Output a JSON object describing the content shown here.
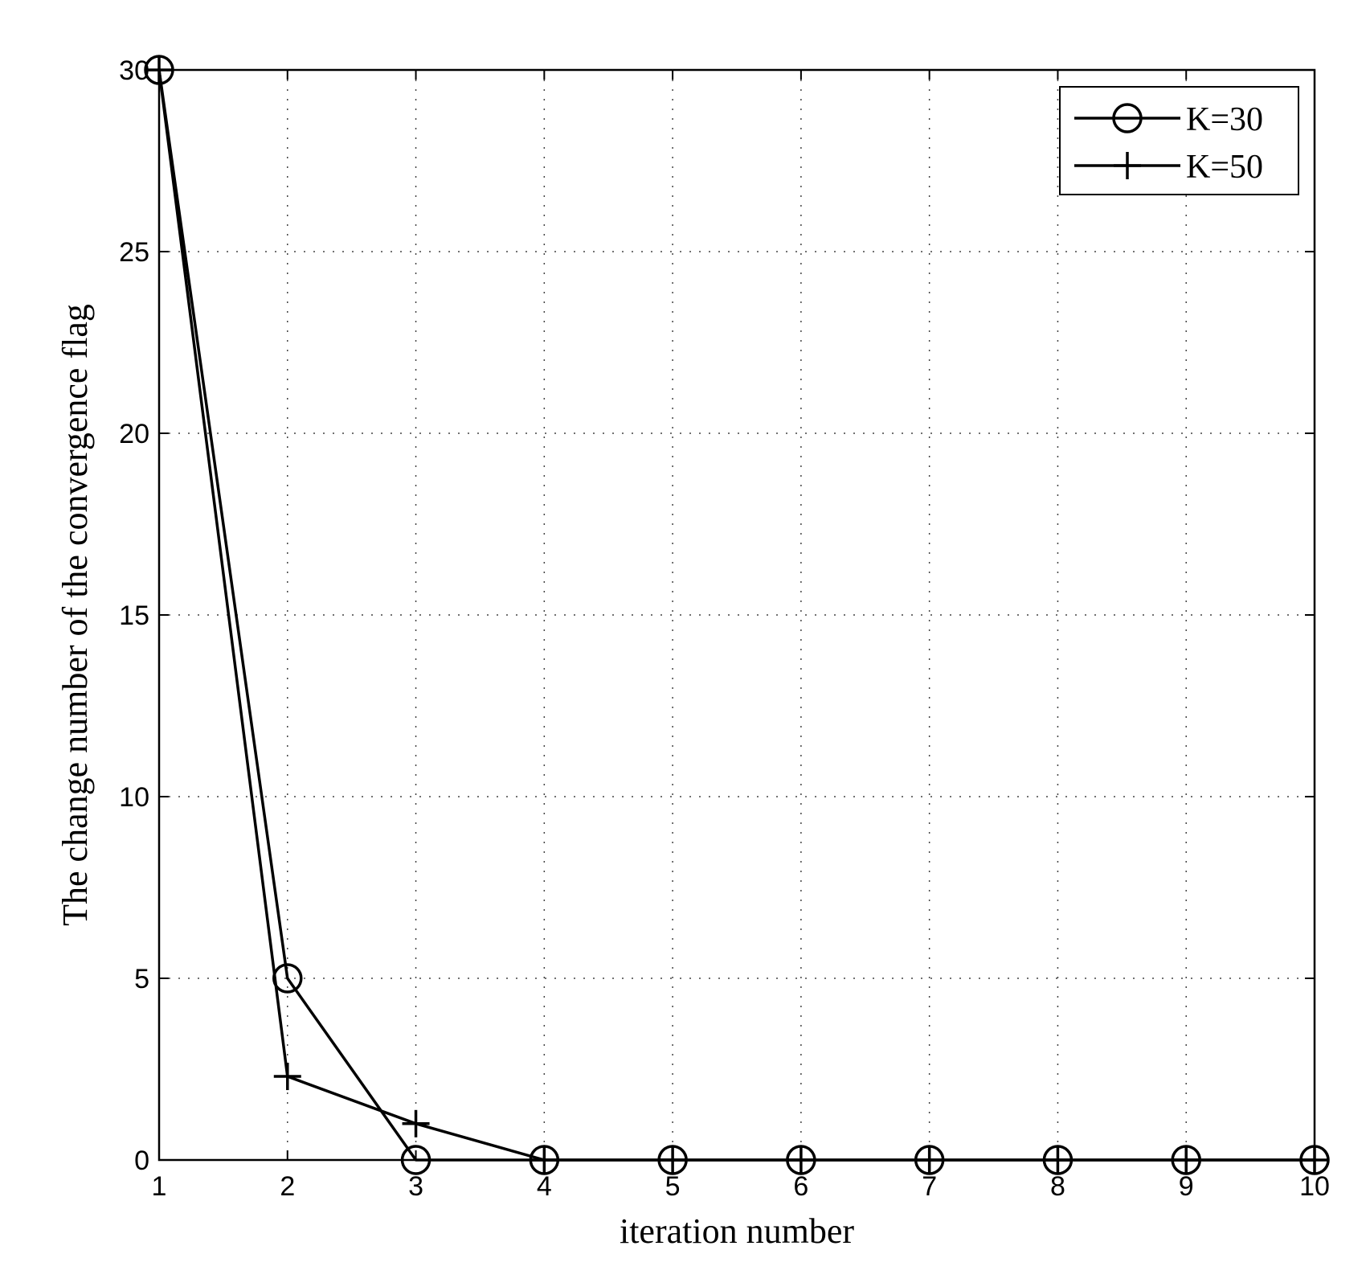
{
  "chart_data": {
    "type": "line",
    "title": "",
    "xlabel": "iteration number",
    "ylabel": "The change number of the convergence flag",
    "xlim": [
      1,
      10
    ],
    "ylim": [
      0,
      30
    ],
    "xticks": [
      1,
      2,
      3,
      4,
      5,
      6,
      7,
      8,
      9,
      10
    ],
    "yticks": [
      0,
      5,
      10,
      15,
      20,
      25,
      30
    ],
    "grid": true,
    "legend_position": "top-right",
    "x": [
      1,
      2,
      3,
      4,
      5,
      6,
      7,
      8,
      9,
      10
    ],
    "series": [
      {
        "name": "K=30",
        "marker": "circle",
        "color": "#000000",
        "values": [
          30,
          5,
          0,
          0,
          0,
          0,
          0,
          0,
          0,
          0
        ]
      },
      {
        "name": "K=50",
        "marker": "plus",
        "color": "#000000",
        "values": [
          30,
          2.3,
          1,
          0,
          0,
          0,
          0,
          0,
          0,
          0
        ]
      }
    ]
  }
}
